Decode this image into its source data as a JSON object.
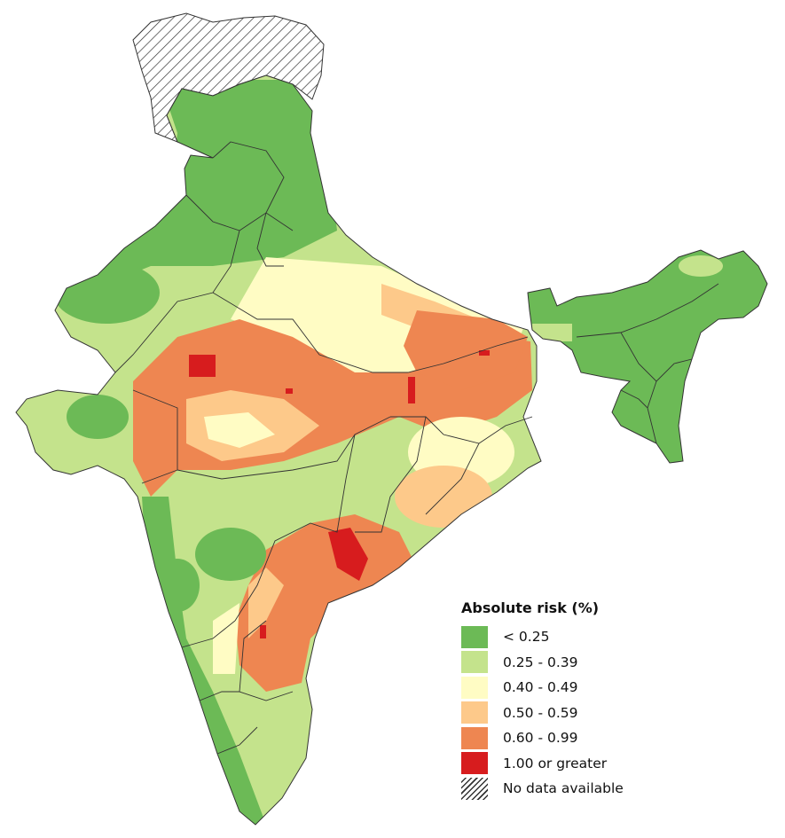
{
  "map": {
    "region": "India",
    "palette": {
      "lt025": "#6cba56",
      "r025_039": "#c4e38c",
      "r040_049": "#fffcc4",
      "r050_059": "#fdc98a",
      "r060_099": "#ee8651",
      "ge100": "#d71c1e",
      "border": "#333333"
    }
  },
  "legend": {
    "title": "Absolute risk (%)",
    "items": [
      {
        "label": "< 0.25",
        "color": "#6cba56"
      },
      {
        "label": "0.25 - 0.39",
        "color": "#c4e38c"
      },
      {
        "label": "0.40 - 0.49",
        "color": "#fffcc4"
      },
      {
        "label": "0.50 - 0.59",
        "color": "#fdc98a"
      },
      {
        "label": "0.60 - 0.99",
        "color": "#ee8651"
      },
      {
        "label": "1.00 or greater",
        "color": "#d71c1e"
      },
      {
        "label": "No data available",
        "color": "hatch"
      }
    ]
  }
}
